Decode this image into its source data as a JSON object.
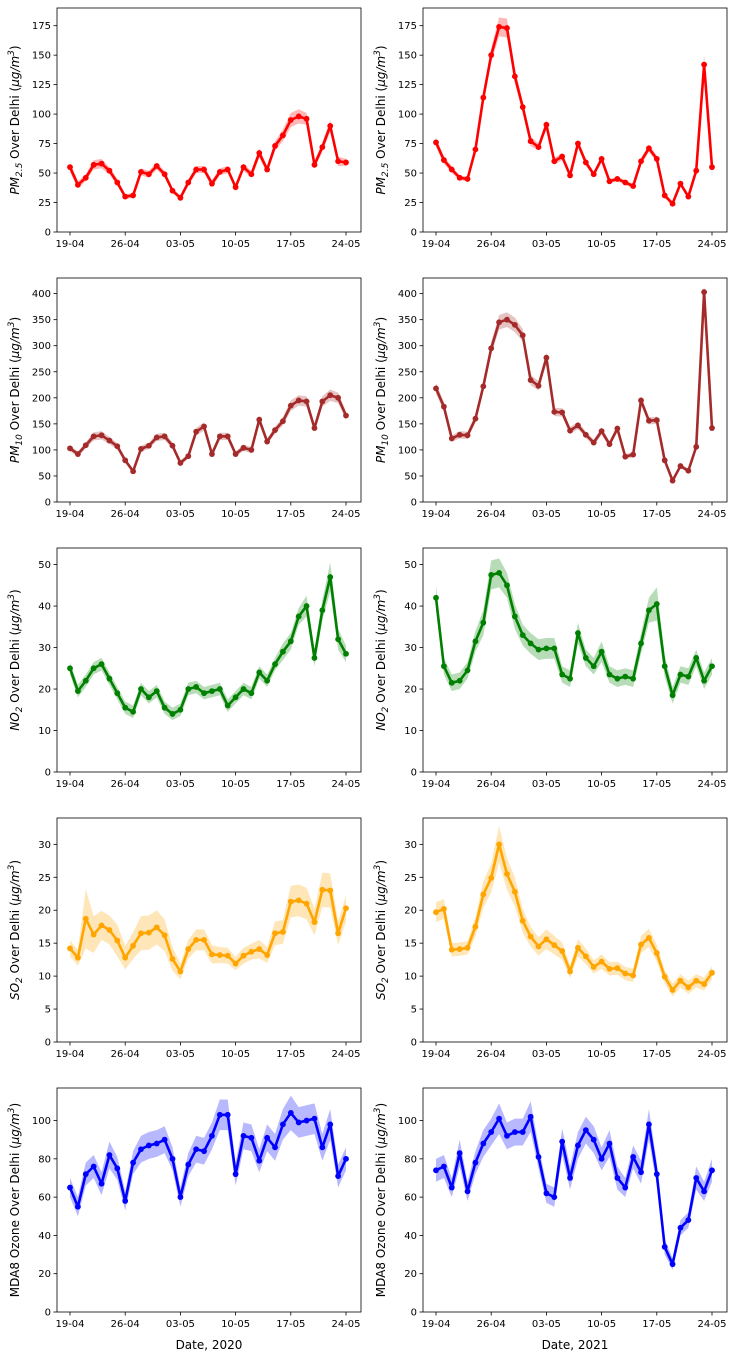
{
  "figure": {
    "xlabels": [
      "Date, 2020",
      "Date, 2021"
    ]
  },
  "chart_data": [
    {
      "type": "line",
      "year": "2020",
      "color": "#ff0000",
      "band_color": "#ff0000",
      "ylabel_main": "PM",
      "ylabel_sub": "2.5",
      "ylabel_rest": " Over Delhi (",
      "ylabel_unit": "μg/m",
      "ylabel_sup": "3",
      "ylabel_close": ")",
      "ylim": [
        0,
        190
      ],
      "yticks": [
        0,
        25,
        50,
        75,
        100,
        125,
        150,
        175
      ],
      "xticks": [
        "19-04",
        "26-04",
        "03-05",
        "10-05",
        "17-05",
        "24-05"
      ],
      "x_start": "19-04",
      "x_end": "24-05",
      "values": [
        55,
        40,
        46,
        57,
        58,
        52,
        42,
        30,
        31,
        51,
        49,
        56,
        49,
        35,
        29,
        42,
        53,
        53,
        41,
        51,
        53,
        38,
        55,
        49,
        67,
        53,
        73,
        82,
        95,
        98,
        96,
        57,
        72,
        90,
        60,
        59
      ],
      "band": [
        4,
        3,
        3,
        4,
        4,
        3,
        3,
        2,
        2,
        3,
        3,
        3,
        3,
        2,
        2,
        3,
        3,
        3,
        3,
        3,
        3,
        2,
        3,
        3,
        4,
        3,
        4,
        5,
        6,
        6,
        5,
        3,
        4,
        5,
        4,
        3
      ]
    },
    {
      "type": "line",
      "year": "2021",
      "color": "#ff0000",
      "band_color": "#ff0000",
      "ylabel_main": "PM",
      "ylabel_sub": "2.5",
      "ylabel_rest": " Over Delhi (",
      "ylabel_unit": "μg/m",
      "ylabel_sup": "3",
      "ylabel_close": ")",
      "ylim": [
        0,
        190
      ],
      "yticks": [
        0,
        25,
        50,
        75,
        100,
        125,
        150,
        175
      ],
      "xticks": [
        "19-04",
        "26-04",
        "03-05",
        "10-05",
        "17-05",
        "24-05"
      ],
      "x_start": "19-04",
      "x_end": "24-05",
      "values": [
        76,
        61,
        53,
        46,
        45,
        70,
        114,
        150,
        174,
        173,
        132,
        106,
        77,
        72,
        91,
        60,
        64,
        48,
        75,
        59,
        49,
        62,
        43,
        45,
        42,
        39,
        60,
        71,
        62,
        31,
        24,
        41,
        30,
        52,
        142,
        55
      ],
      "band": [
        4,
        3,
        3,
        2,
        2,
        3,
        5,
        6,
        8,
        8,
        6,
        5,
        4,
        3,
        4,
        3,
        3,
        2,
        3,
        3,
        2,
        3,
        2,
        2,
        2,
        2,
        3,
        3,
        3,
        2,
        2,
        2,
        2,
        3,
        8,
        3
      ]
    },
    {
      "type": "line",
      "year": "2020",
      "color": "#a52a2a",
      "band_color": "#a52a2a",
      "ylabel_main": "PM",
      "ylabel_sub": "10",
      "ylabel_rest": " Over Delhi (",
      "ylabel_unit": "μg/m",
      "ylabel_sup": "3",
      "ylabel_close": ")",
      "ylim": [
        0,
        430
      ],
      "yticks": [
        0,
        50,
        100,
        150,
        200,
        250,
        300,
        350,
        400
      ],
      "xticks": [
        "19-04",
        "26-04",
        "03-05",
        "10-05",
        "17-05",
        "24-05"
      ],
      "x_start": "19-04",
      "x_end": "24-05",
      "values": [
        103,
        92,
        109,
        126,
        128,
        118,
        107,
        80,
        59,
        102,
        108,
        124,
        126,
        108,
        75,
        88,
        135,
        145,
        92,
        126,
        126,
        92,
        104,
        100,
        158,
        116,
        138,
        155,
        185,
        195,
        193,
        142,
        193,
        205,
        200,
        166
      ],
      "band": [
        6,
        5,
        6,
        8,
        8,
        7,
        6,
        5,
        4,
        6,
        6,
        7,
        7,
        6,
        5,
        5,
        7,
        8,
        5,
        7,
        7,
        5,
        6,
        6,
        8,
        6,
        7,
        8,
        10,
        10,
        10,
        7,
        10,
        11,
        10,
        8
      ]
    },
    {
      "type": "line",
      "year": "2021",
      "color": "#a52a2a",
      "band_color": "#a52a2a",
      "ylabel_main": "PM",
      "ylabel_sub": "10",
      "ylabel_rest": " Over Delhi (",
      "ylabel_unit": "μg/m",
      "ylabel_sup": "3",
      "ylabel_close": ")",
      "ylim": [
        0,
        430
      ],
      "yticks": [
        0,
        50,
        100,
        150,
        200,
        250,
        300,
        350,
        400
      ],
      "xticks": [
        "19-04",
        "26-04",
        "03-05",
        "10-05",
        "17-05",
        "24-05"
      ],
      "x_start": "19-04",
      "x_end": "24-05",
      "values": [
        218,
        183,
        122,
        129,
        128,
        160,
        222,
        295,
        345,
        350,
        340,
        320,
        234,
        223,
        277,
        173,
        172,
        137,
        147,
        129,
        114,
        136,
        111,
        141,
        87,
        91,
        195,
        156,
        157,
        80,
        41,
        69,
        60,
        106,
        403,
        142
      ],
      "band": [
        10,
        9,
        6,
        7,
        7,
        8,
        10,
        12,
        14,
        14,
        14,
        12,
        10,
        9,
        11,
        8,
        8,
        7,
        7,
        6,
        6,
        7,
        6,
        7,
        5,
        5,
        8,
        7,
        7,
        5,
        3,
        4,
        4,
        6,
        12,
        7
      ]
    },
    {
      "type": "line",
      "year": "2020",
      "color": "#008000",
      "band_color": "#008000",
      "ylabel_main": "NO",
      "ylabel_sub": "2",
      "ylabel_rest": " Over Delhi (",
      "ylabel_unit": "μg/m",
      "ylabel_sup": "3",
      "ylabel_close": ")",
      "ylim": [
        0,
        54
      ],
      "yticks": [
        0,
        10,
        20,
        30,
        40,
        50
      ],
      "xticks": [
        "19-04",
        "26-04",
        "03-05",
        "10-05",
        "17-05",
        "24-05"
      ],
      "x_start": "19-04",
      "x_end": "24-05",
      "values": [
        25,
        19.5,
        22,
        25,
        26,
        22.5,
        19,
        15.5,
        14.5,
        20,
        18,
        19.5,
        15.5,
        14,
        15,
        20,
        20.5,
        19,
        19.5,
        20,
        16,
        18,
        20,
        19,
        24,
        22,
        26,
        29,
        31.5,
        37.5,
        40,
        27.5,
        39,
        47,
        32,
        28.5
      ],
      "band": [
        1.5,
        1.5,
        1.5,
        1.5,
        1.5,
        1.5,
        1.5,
        1.5,
        1.5,
        1.5,
        1.5,
        1.5,
        1.5,
        1.5,
        1.5,
        1.5,
        1.5,
        1.5,
        1.5,
        1.5,
        1.5,
        1.5,
        1.5,
        1.5,
        1.5,
        1.5,
        1.5,
        2,
        2,
        2,
        2.5,
        2,
        2.5,
        3.5,
        2.5,
        2
      ]
    },
    {
      "type": "line",
      "year": "2021",
      "color": "#008000",
      "band_color": "#008000",
      "ylabel_main": "NO",
      "ylabel_sub": "2",
      "ylabel_rest": " Over Delhi (",
      "ylabel_unit": "μg/m",
      "ylabel_sup": "3",
      "ylabel_close": ")",
      "ylim": [
        0,
        54
      ],
      "yticks": [
        0,
        10,
        20,
        30,
        40,
        50
      ],
      "xticks": [
        "19-04",
        "26-04",
        "03-05",
        "10-05",
        "17-05",
        "24-05"
      ],
      "x_start": "19-04",
      "x_end": "24-05",
      "values": [
        42,
        25.5,
        21.5,
        22,
        24.5,
        31.5,
        36,
        47.5,
        48,
        45,
        37.5,
        33,
        31,
        29.5,
        29.8,
        29.8,
        23.5,
        22.5,
        33.5,
        27.5,
        25.5,
        29,
        23.5,
        22.5,
        23,
        22.5,
        31,
        39,
        40.5,
        25.5,
        18.5,
        23.5,
        23,
        27.5,
        22,
        25.5
      ],
      "band": [
        3,
        2,
        2,
        2,
        2,
        2.5,
        3,
        3.5,
        3.5,
        3,
        3,
        2.5,
        2.5,
        2.5,
        2.5,
        2.5,
        2,
        2,
        2.5,
        2,
        2,
        2.5,
        2,
        2,
        2,
        2,
        2.5,
        3,
        4,
        2.5,
        2,
        2,
        2,
        2,
        2,
        2
      ]
    },
    {
      "type": "line",
      "year": "2020",
      "color": "#ffa500",
      "band_color": "#ffa500",
      "ylabel_main": "SO",
      "ylabel_sub": "2",
      "ylabel_rest": " Over Delhi (",
      "ylabel_unit": "μg/m",
      "ylabel_sup": "3",
      "ylabel_close": ")",
      "ylim": [
        0,
        34
      ],
      "yticks": [
        0,
        5,
        10,
        15,
        20,
        25,
        30
      ],
      "xticks": [
        "19-04",
        "26-04",
        "03-05",
        "10-05",
        "17-05",
        "24-05"
      ],
      "x_start": "19-04",
      "x_end": "24-05",
      "values": [
        14.2,
        12.8,
        18.7,
        16.3,
        17.7,
        17,
        15.4,
        12.8,
        14.6,
        16.5,
        16.6,
        17.4,
        16.2,
        12.6,
        10.7,
        14.1,
        15.5,
        15.5,
        13.3,
        13.2,
        13.1,
        11.9,
        13.1,
        13.7,
        14.1,
        13.2,
        16.5,
        16.7,
        21.3,
        21.5,
        21,
        18.2,
        23.1,
        23,
        16.5,
        20.3
      ],
      "band": [
        1.2,
        1.2,
        4.5,
        2.8,
        2.2,
        2.2,
        2.4,
        1.8,
        2,
        2.6,
        2.6,
        2.6,
        2.4,
        1.8,
        1.2,
        1.4,
        1.6,
        1.6,
        1.4,
        1.2,
        1.2,
        1,
        1.2,
        1.2,
        1.4,
        1.2,
        1.8,
        1.8,
        2.4,
        2.4,
        2.4,
        2,
        2.6,
        2.6,
        1.8,
        2
      ]
    },
    {
      "type": "line",
      "year": "2021",
      "color": "#ffa500",
      "band_color": "#ffa500",
      "ylabel_main": "SO",
      "ylabel_sub": "2",
      "ylabel_rest": " Over Delhi (",
      "ylabel_unit": "μg/m",
      "ylabel_sup": "3",
      "ylabel_close": ")",
      "ylim": [
        0,
        34
      ],
      "yticks": [
        0,
        5,
        10,
        15,
        20,
        25,
        30
      ],
      "xticks": [
        "19-04",
        "26-04",
        "03-05",
        "10-05",
        "17-05",
        "24-05"
      ],
      "x_start": "19-04",
      "x_end": "24-05",
      "values": [
        19.7,
        20.2,
        14,
        14.1,
        14.3,
        17.5,
        22.4,
        24.9,
        30,
        25.5,
        22.8,
        18.4,
        16,
        14.5,
        15.6,
        14.7,
        13.8,
        10.7,
        14.3,
        13,
        11.4,
        12.2,
        11.1,
        11.2,
        10.4,
        10.1,
        14.8,
        15.8,
        13.5,
        9.9,
        7.9,
        9.3,
        8.3,
        9.3,
        8.8,
        10.5
      ],
      "band": [
        1.5,
        1.5,
        1,
        1,
        1,
        1.5,
        2,
        2.2,
        2.8,
        2.4,
        2.2,
        1.8,
        1.5,
        1.4,
        1.5,
        1.4,
        1.3,
        1,
        1.3,
        1.2,
        1,
        1.1,
        1,
        1,
        1,
        1,
        1.3,
        1.4,
        1.3,
        1,
        1,
        1,
        1,
        1,
        1,
        1
      ]
    },
    {
      "type": "line",
      "year": "2020",
      "color": "#0000ff",
      "band_color": "#0000ff",
      "ylabel_main": "MDA8 Ozone Over Delhi (",
      "ylabel_sub": "",
      "ylabel_rest": "",
      "ylabel_unit": "μg/m",
      "ylabel_sup": "3",
      "ylabel_close": ")",
      "ylim": [
        0,
        117
      ],
      "yticks": [
        0,
        20,
        40,
        60,
        80,
        100
      ],
      "xticks": [
        "19-04",
        "26-04",
        "03-05",
        "10-05",
        "17-05",
        "24-05"
      ],
      "x_start": "19-04",
      "x_end": "24-05",
      "values": [
        65,
        55,
        72,
        76,
        67,
        82,
        75,
        58,
        78,
        85,
        87,
        88,
        90,
        80,
        60,
        77,
        85,
        84,
        92,
        103,
        103,
        72,
        92,
        91,
        79,
        91,
        86,
        98,
        104,
        99,
        100,
        101,
        86,
        98,
        71,
        80
      ],
      "band": [
        5,
        5,
        6,
        6,
        6,
        7,
        6,
        5,
        6,
        7,
        7,
        7,
        7,
        6,
        5,
        6,
        7,
        7,
        7,
        8,
        8,
        6,
        7,
        7,
        6,
        7,
        7,
        8,
        9,
        8,
        8,
        8,
        7,
        8,
        6,
        6
      ]
    },
    {
      "type": "line",
      "year": "2021",
      "color": "#0000ff",
      "band_color": "#0000ff",
      "ylabel_main": "MDA8 Ozone Over Delhi (",
      "ylabel_sub": "",
      "ylabel_rest": "",
      "ylabel_unit": "μg/m",
      "ylabel_sup": "3",
      "ylabel_close": ")",
      "ylim": [
        0,
        117
      ],
      "yticks": [
        0,
        20,
        40,
        60,
        80,
        100
      ],
      "xticks": [
        "19-04",
        "26-04",
        "03-05",
        "10-05",
        "17-05",
        "24-05"
      ],
      "x_start": "19-04",
      "x_end": "24-05",
      "values": [
        74,
        76,
        65,
        83,
        63,
        78,
        88,
        94,
        101,
        92,
        94,
        94,
        102,
        81,
        62,
        60,
        89,
        70,
        87,
        95,
        90,
        80,
        88,
        70,
        65,
        81,
        73,
        98,
        72,
        34,
        25,
        44,
        48,
        70,
        63,
        74
      ],
      "band": [
        6,
        6,
        5,
        7,
        5,
        6,
        7,
        7,
        8,
        7,
        7,
        7,
        8,
        6,
        5,
        5,
        7,
        6,
        7,
        7,
        7,
        6,
        7,
        6,
        5,
        6,
        6,
        8,
        6,
        4,
        3,
        4,
        4,
        6,
        5,
        6
      ]
    }
  ]
}
